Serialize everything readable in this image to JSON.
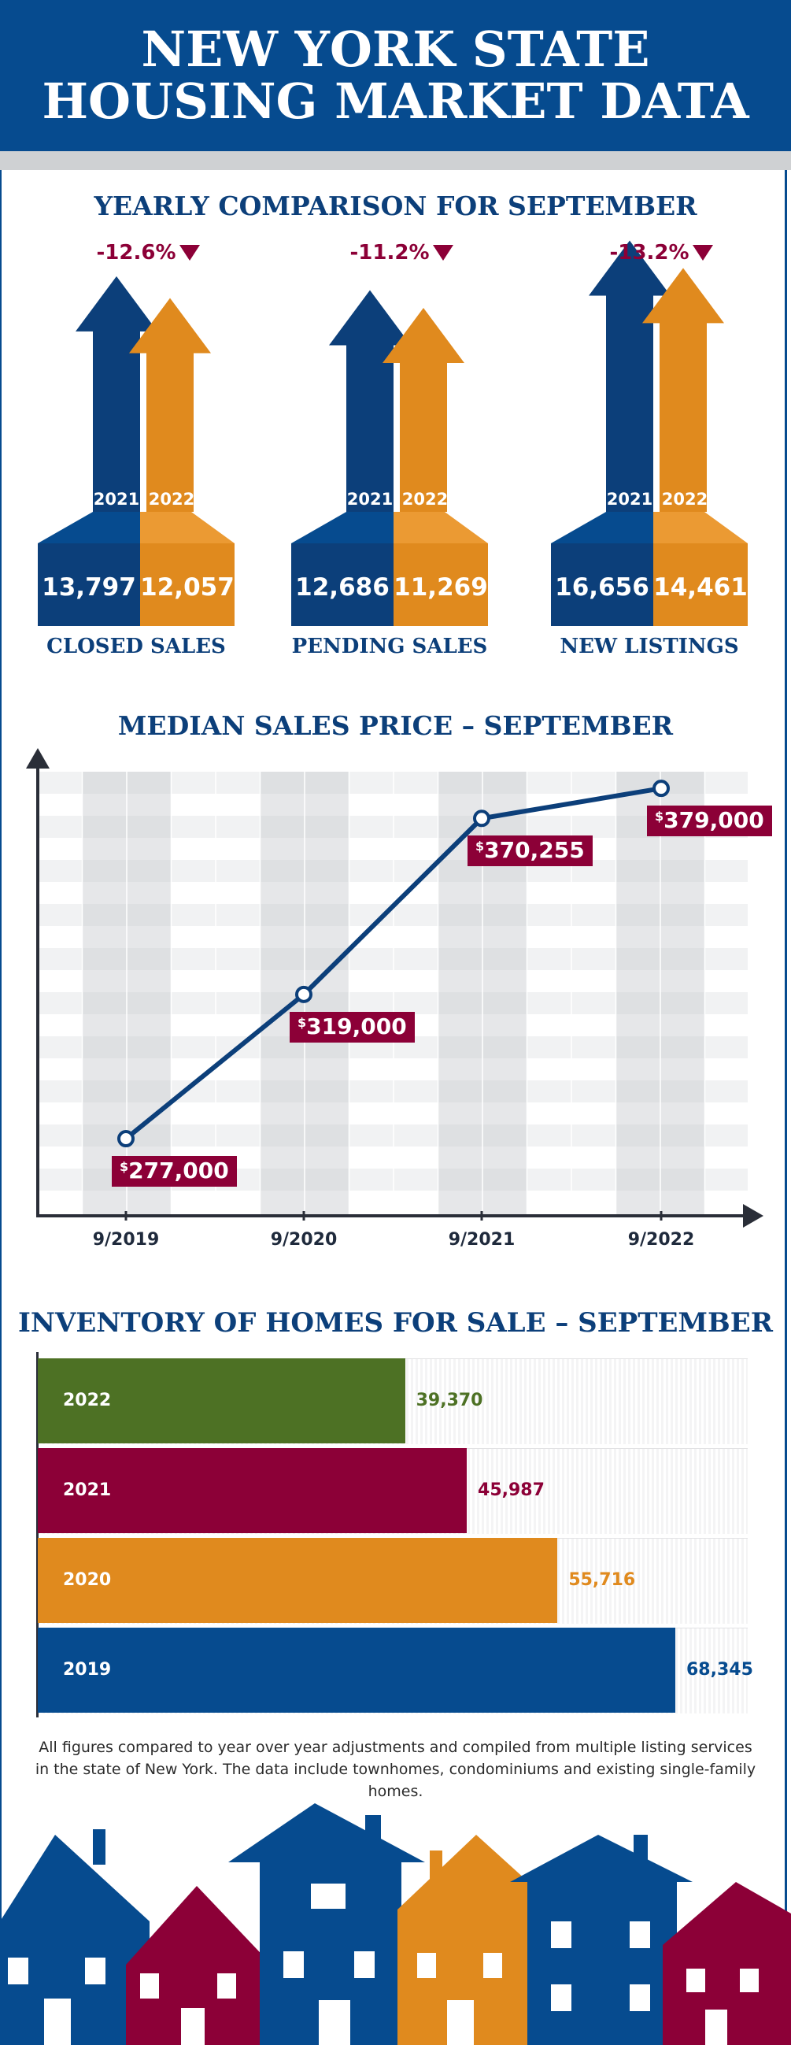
{
  "header": {
    "title_line1": "NEW YORK STATE",
    "title_line2": "HOUSING MARKET DATA"
  },
  "colors": {
    "navy": "#0c3f7a",
    "blue": "#064b8f",
    "orange": "#e08a1e",
    "maroon": "#8c0037",
    "green": "#4d7124"
  },
  "yearly": {
    "title": "YEARLY COMPARISON FOR SEPTEMBER",
    "year_a": "2021",
    "year_b": "2022",
    "groups": [
      {
        "label": "CLOSED SALES",
        "change": "-12.6%",
        "v2021": "13,797",
        "v2022": "12,057"
      },
      {
        "label": "PENDING SALES",
        "change": "-11.2%",
        "v2021": "12,686",
        "v2022": "11,269"
      },
      {
        "label": "NEW LISTINGS",
        "change": "-13.2%",
        "v2021": "16,656",
        "v2022": "14,461"
      }
    ]
  },
  "median": {
    "title": "MEDIAN SALES PRICE – SEPTEMBER",
    "currency": "$",
    "labels": [
      "277,000",
      "319,000",
      "370,255",
      "379,000"
    ]
  },
  "inventory": {
    "title": "INVENTORY OF HOMES FOR SALE – SEPTEMBER",
    "rows": [
      {
        "year": "2022",
        "value": "39,370"
      },
      {
        "year": "2021",
        "value": "45,987"
      },
      {
        "year": "2020",
        "value": "55,716"
      },
      {
        "year": "2019",
        "value": "68,345"
      }
    ]
  },
  "footnote": "All figures compared to year over year adjustments and compiled from multiple listing services in the state of New York.  The data include townhomes, condominiums and existing single-family homes.",
  "chart_data": [
    {
      "type": "bar",
      "title": "YEARLY COMPARISON FOR SEPTEMBER",
      "categories": [
        "CLOSED SALES",
        "PENDING SALES",
        "NEW LISTINGS"
      ],
      "series": [
        {
          "name": "2021",
          "values": [
            13797,
            12686,
            16656
          ]
        },
        {
          "name": "2022",
          "values": [
            12057,
            11269,
            14461
          ]
        }
      ],
      "annotations": [
        "-12.6%",
        "-11.2%",
        "-13.2%"
      ]
    },
    {
      "type": "line",
      "title": "MEDIAN SALES PRICE – SEPTEMBER",
      "x": [
        "9/2019",
        "9/2020",
        "9/2021",
        "9/2022"
      ],
      "y": [
        277000,
        319000,
        370255,
        379000
      ],
      "ylim": [
        255000,
        385000
      ],
      "grid": true
    },
    {
      "type": "bar",
      "orientation": "horizontal",
      "title": "INVENTORY OF HOMES FOR SALE – SEPTEMBER",
      "categories": [
        "2022",
        "2021",
        "2020",
        "2019"
      ],
      "values": [
        39370,
        45987,
        55716,
        68345
      ],
      "colors": [
        "#4d7124",
        "#8c0037",
        "#e08a1e",
        "#064b8f"
      ]
    }
  ]
}
